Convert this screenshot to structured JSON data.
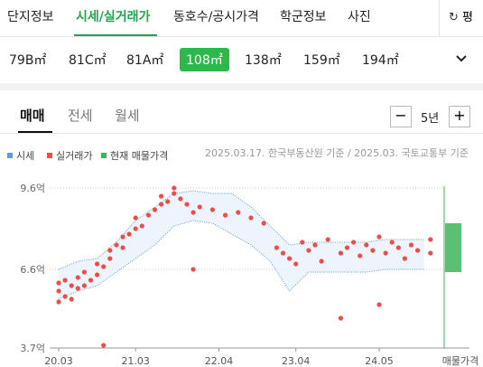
{
  "tabs": [
    "단지정보",
    "시세/실거래가",
    "동호수/공시가격",
    "학군정보",
    "사진"
  ],
  "unit_toggle": "평",
  "area_chips": [
    "79B㎡",
    "81C㎡",
    "81A㎡",
    "108㎡",
    "138㎡",
    "159㎡",
    "194㎡"
  ],
  "trade_tabs": [
    "매매",
    "전세",
    "월세"
  ],
  "period": "5년",
  "chart_data": {
    "type": "scatter",
    "source_note": "2025.03.17. 한국부동산원 기준 / 2025.03. 국토교통부 기준",
    "xlim": [
      0,
      60
    ],
    "ylim": [
      3.7,
      9.6
    ],
    "xticks": [
      {
        "value": 0,
        "label": "20.03"
      },
      {
        "value": 12,
        "label": "21.03"
      },
      {
        "value": 25,
        "label": "22.04"
      },
      {
        "value": 37,
        "label": "23.04"
      },
      {
        "value": 50,
        "label": "24.05"
      }
    ],
    "yticks": [
      {
        "value": 3.7,
        "label": "3.7억"
      },
      {
        "value": 6.6,
        "label": "6.6억"
      },
      {
        "value": 9.6,
        "label": "9.6억"
      }
    ],
    "grid": true,
    "band": {
      "name": "시세",
      "color": "#5b9be0",
      "x": [
        0,
        3,
        6,
        9,
        12,
        15,
        18,
        21,
        24,
        27,
        30,
        33,
        36,
        39,
        42,
        45,
        48,
        51,
        54,
        57
      ],
      "upper": [
        6.6,
        6.9,
        7.0,
        7.6,
        8.4,
        8.9,
        9.4,
        9.5,
        9.4,
        9.4,
        8.9,
        8.2,
        7.5,
        7.6,
        7.6,
        7.6,
        7.6,
        7.7,
        7.7,
        7.7
      ],
      "lower": [
        5.5,
        5.8,
        6.0,
        6.5,
        7.0,
        7.5,
        8.2,
        8.4,
        8.3,
        7.9,
        7.5,
        6.9,
        5.8,
        6.5,
        6.5,
        6.5,
        6.5,
        6.6,
        6.6,
        6.6
      ]
    },
    "series": [
      {
        "name": "실거래가",
        "color": "#f04c4c",
        "x": [
          0,
          0,
          0,
          1,
          1,
          2,
          2,
          3,
          3,
          4,
          4,
          5,
          6,
          6,
          7,
          8,
          8,
          9,
          10,
          10,
          11,
          12,
          12,
          13,
          14,
          15,
          16,
          16,
          17,
          18,
          18,
          19,
          20,
          21,
          22,
          24,
          26,
          28,
          30,
          32,
          34,
          35,
          36,
          37,
          38,
          39,
          40,
          41,
          42,
          44,
          45,
          46,
          47,
          48,
          49,
          50,
          51,
          52,
          53,
          54,
          55,
          56,
          58,
          58,
          7,
          44,
          50,
          21
        ],
        "values": [
          5.4,
          5.8,
          6.1,
          5.6,
          6.2,
          5.5,
          6.0,
          5.9,
          6.3,
          6.0,
          6.5,
          6.2,
          6.4,
          6.8,
          6.7,
          7.0,
          7.3,
          7.5,
          7.4,
          7.8,
          7.9,
          8.1,
          8.5,
          8.2,
          8.6,
          8.8,
          9.0,
          9.3,
          9.1,
          9.4,
          9.6,
          9.2,
          9.0,
          8.7,
          8.9,
          8.8,
          8.6,
          8.7,
          8.5,
          8.3,
          7.4,
          7.2,
          7.0,
          6.8,
          7.6,
          7.3,
          7.5,
          6.9,
          7.7,
          7.2,
          7.4,
          7.6,
          7.1,
          7.5,
          7.3,
          7.8,
          7.2,
          7.6,
          7.4,
          7.0,
          7.5,
          7.3,
          7.2,
          7.7,
          3.8,
          4.8,
          5.3,
          6.6
        ]
      }
    ],
    "listing": {
      "name": "현재 매물가격",
      "color": "#3cb55c",
      "low": 6.5,
      "high": 8.3
    },
    "listing_axis_label": "매물가격"
  }
}
